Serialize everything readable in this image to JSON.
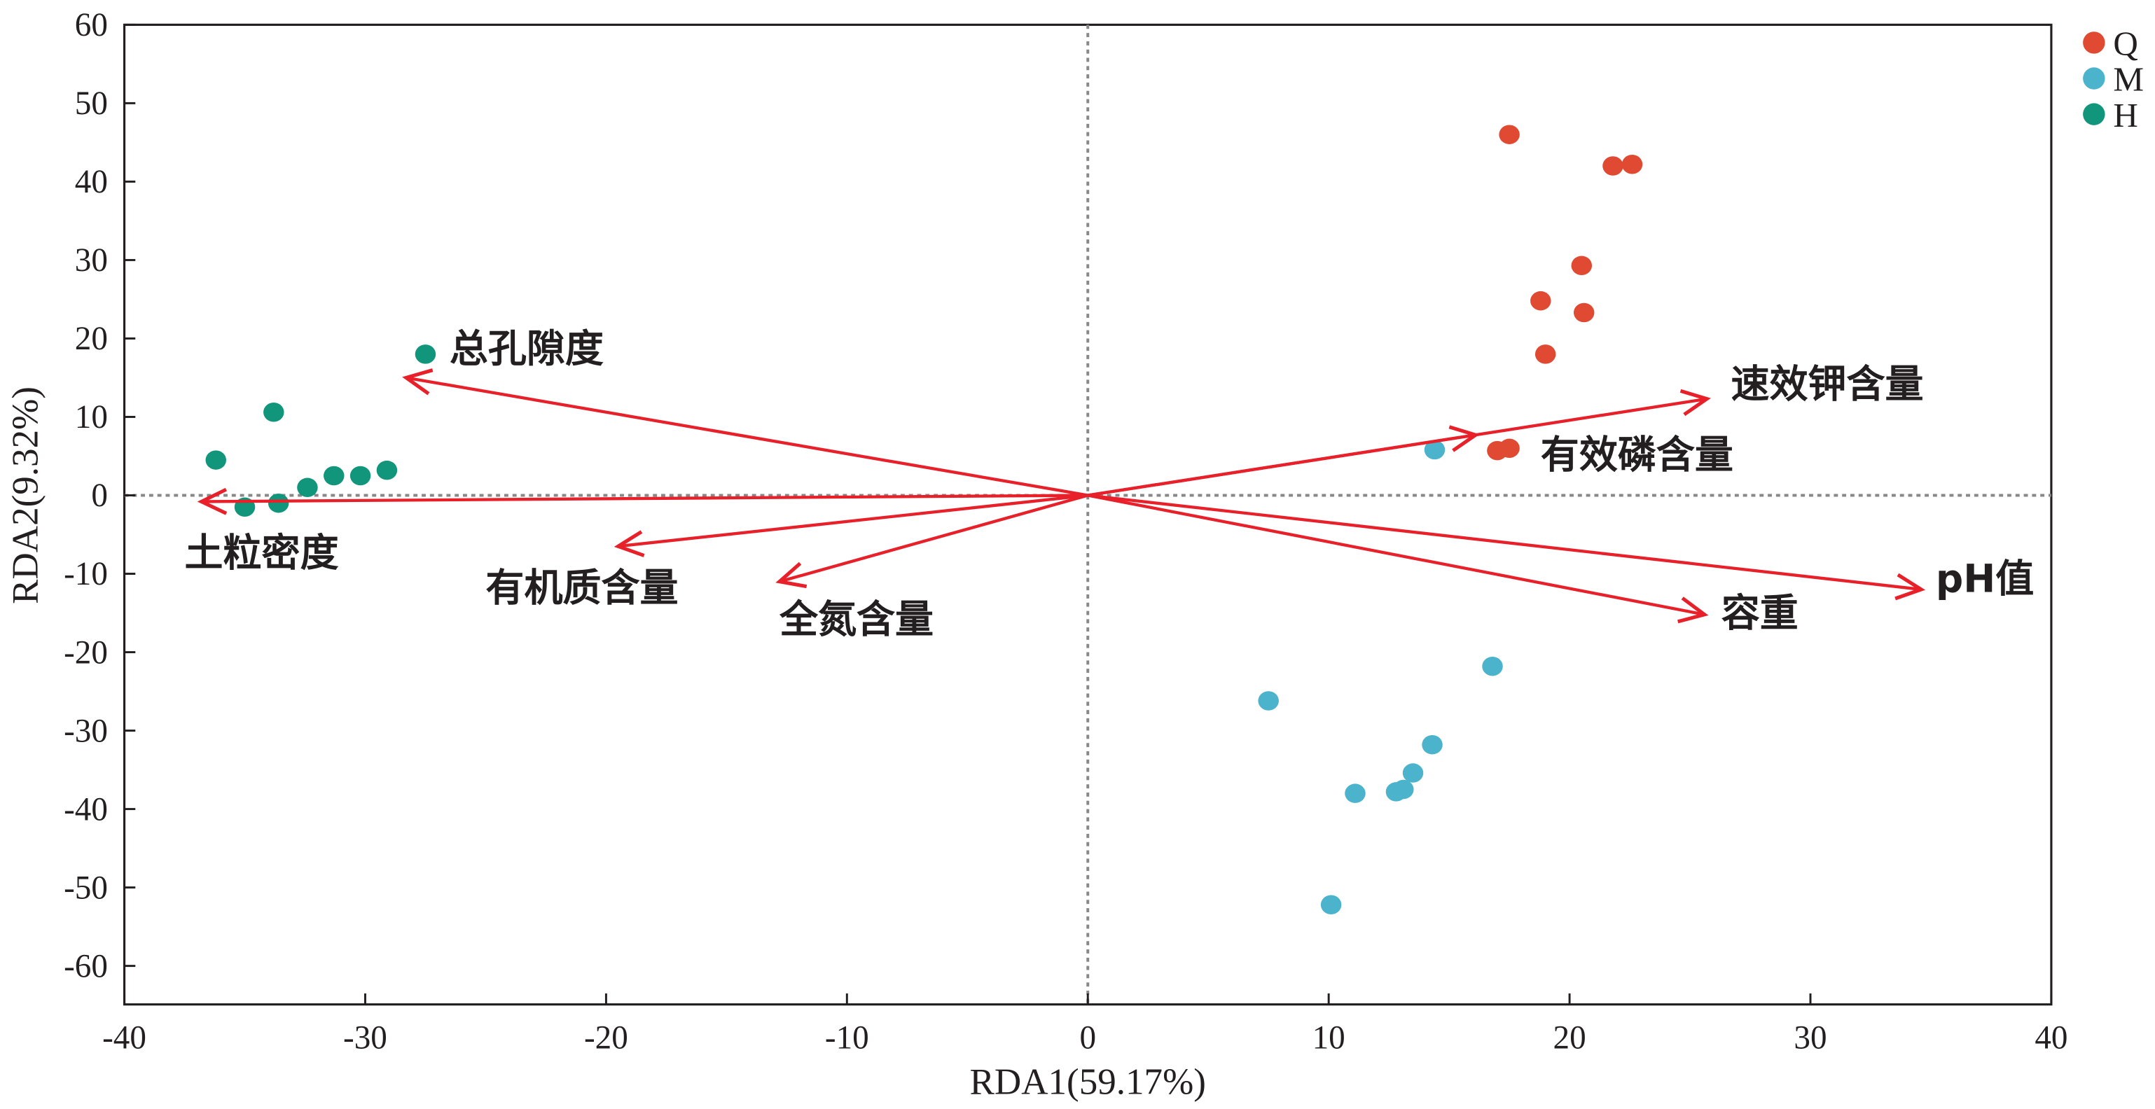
{
  "chart_data": {
    "type": "scatter",
    "title": "",
    "xlabel": "RDA1(59.17%)",
    "ylabel": "RDA2(9.32%)",
    "xlim": [
      -40,
      40
    ],
    "ylim": [
      -65,
      60
    ],
    "xticks": [
      -40,
      -30,
      -20,
      -10,
      0,
      10,
      20,
      30,
      40
    ],
    "yticks": [
      60,
      50,
      40,
      30,
      20,
      10,
      0,
      -10,
      -20,
      -30,
      -40,
      -50,
      -60
    ],
    "grid": false,
    "legend_position": "top-right outside",
    "series": [
      {
        "name": "Q",
        "color": "#e04a33",
        "points": [
          [
            17.5,
            46
          ],
          [
            21.8,
            42
          ],
          [
            22.6,
            42.2
          ],
          [
            20.5,
            29.3
          ],
          [
            18.8,
            24.8
          ],
          [
            20.6,
            23.3
          ],
          [
            19,
            18
          ],
          [
            17,
            5.7
          ],
          [
            17.5,
            6
          ]
        ]
      },
      {
        "name": "M",
        "color": "#4bb3cc",
        "points": [
          [
            14.4,
            5.8
          ],
          [
            16.8,
            -21.8
          ],
          [
            7.5,
            -26.2
          ],
          [
            14.3,
            -31.8
          ],
          [
            13.5,
            -35.4
          ],
          [
            12.8,
            -37.8
          ],
          [
            13.1,
            -37.5
          ],
          [
            11.1,
            -38
          ],
          [
            10.1,
            -52.2
          ]
        ]
      },
      {
        "name": "H",
        "color": "#12967b",
        "points": [
          [
            -27.5,
            18
          ],
          [
            -33.8,
            10.6
          ],
          [
            -36.2,
            4.5
          ],
          [
            -35,
            -1.5
          ],
          [
            -33.6,
            -1
          ],
          [
            -32.4,
            1
          ],
          [
            -31.3,
            2.5
          ],
          [
            -30.2,
            2.5
          ],
          [
            -29.1,
            3.2
          ]
        ]
      }
    ],
    "arrows_color": "#e8202a",
    "arrows": [
      {
        "label": "总孔隙度",
        "x": -28.3,
        "y": 15,
        "lx": -26.5,
        "ly": 17,
        "anchor": "start"
      },
      {
        "label": "土粒密度",
        "x": -36.8,
        "y": -0.8,
        "lx": -37.5,
        "ly": -9,
        "anchor": "start"
      },
      {
        "label": "有机质含量",
        "x": -19.5,
        "y": -6.5,
        "lx": -25,
        "ly": -13.5,
        "anchor": "start"
      },
      {
        "label": "全氮含量",
        "x": -12.8,
        "y": -11,
        "lx": -12.8,
        "ly": -17.5,
        "anchor": "start"
      },
      {
        "label": "速效钾含量",
        "x": 25.7,
        "y": 12.3,
        "lx": 26.7,
        "ly": 12.5,
        "anchor": "start"
      },
      {
        "label": "有效磷含量",
        "x": 16.1,
        "y": 7.7,
        "lx": 18.8,
        "ly": 3.5,
        "anchor": "start"
      },
      {
        "label": "pH值",
        "x": 34.6,
        "y": -12,
        "lx": 35.2,
        "ly": -12.3,
        "anchor": "start"
      },
      {
        "label": "容重",
        "x": 25.6,
        "y": -15.2,
        "lx": 26.3,
        "ly": -16.7,
        "anchor": "start"
      }
    ]
  }
}
